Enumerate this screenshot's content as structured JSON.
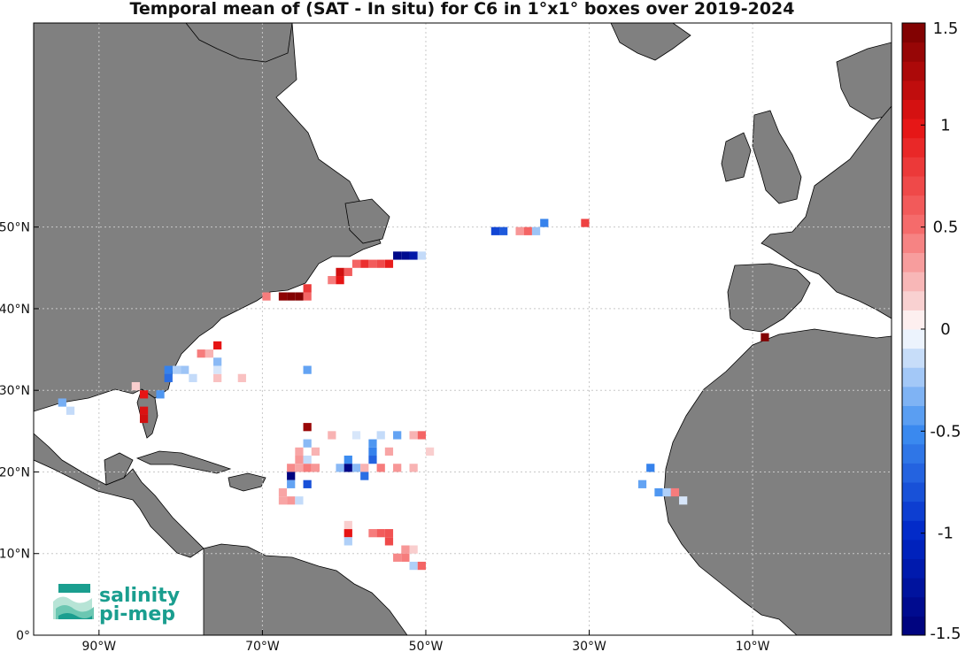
{
  "title": "Temporal mean of (SAT - In situ) for C6 in 1°x1° boxes over 2019-2024",
  "logo": {
    "line1": "salinity",
    "line2": "pi-mep"
  },
  "colors": {
    "land": "#808080",
    "ocean": "#ffffff",
    "grid": "#cccccc"
  },
  "chart_data": {
    "type": "heatmap",
    "map": {
      "lon_range": [
        -98,
        7
      ],
      "lat_range": [
        0,
        75
      ],
      "projection": "equirectangular"
    },
    "x_ticks": [
      {
        "lon": -90,
        "label": "90°W"
      },
      {
        "lon": -70,
        "label": "70°W"
      },
      {
        "lon": -50,
        "label": "50°W"
      },
      {
        "lon": -30,
        "label": "30°W"
      },
      {
        "lon": -10,
        "label": "10°W"
      }
    ],
    "y_ticks": [
      {
        "lat": 0,
        "label": "0°"
      },
      {
        "lat": 10,
        "label": "10°N"
      },
      {
        "lat": 20,
        "label": "20°N"
      },
      {
        "lat": 30,
        "label": "30°N"
      },
      {
        "lat": 40,
        "label": "40°N"
      },
      {
        "lat": 50,
        "label": "50°N"
      }
    ],
    "colorbar": {
      "range": [
        -1.5,
        1.5
      ],
      "levels": 32,
      "ticks": [
        {
          "value": 1.5,
          "label": "1.5"
        },
        {
          "value": 1,
          "label": "1"
        },
        {
          "value": 0.5,
          "label": "0.5"
        },
        {
          "value": 0,
          "label": "0"
        },
        {
          "value": -0.5,
          "label": "-0.5"
        },
        {
          "value": -1,
          "label": "-1"
        },
        {
          "value": -1.5,
          "label": "-1.5"
        }
      ]
    },
    "cells": [
      {
        "lon": -41.5,
        "lat": 49.5,
        "v": -0.85
      },
      {
        "lon": -40.5,
        "lat": 49.5,
        "v": -0.75
      },
      {
        "lon": -38.5,
        "lat": 49.5,
        "v": 0.35
      },
      {
        "lon": -37.5,
        "lat": 49.5,
        "v": 0.55
      },
      {
        "lon": -36.5,
        "lat": 49.5,
        "v": -0.25
      },
      {
        "lon": -35.5,
        "lat": 50.5,
        "v": -0.55
      },
      {
        "lon": -30.5,
        "lat": 50.5,
        "v": 0.75
      },
      {
        "lon": -53.5,
        "lat": 46.5,
        "v": -1.4
      },
      {
        "lon": -52.5,
        "lat": 46.5,
        "v": -1.35
      },
      {
        "lon": -51.5,
        "lat": 46.5,
        "v": -1.2
      },
      {
        "lon": -50.5,
        "lat": 46.5,
        "v": -0.15
      },
      {
        "lon": -54.5,
        "lat": 45.5,
        "v": 0.95
      },
      {
        "lon": -55.5,
        "lat": 45.5,
        "v": 0.7
      },
      {
        "lon": -56.5,
        "lat": 45.5,
        "v": 0.6
      },
      {
        "lon": -57.5,
        "lat": 45.5,
        "v": 0.85
      },
      {
        "lon": -58.5,
        "lat": 45.5,
        "v": 0.55
      },
      {
        "lon": -59.5,
        "lat": 44.5,
        "v": 0.6
      },
      {
        "lon": -60.5,
        "lat": 44.5,
        "v": 1.1
      },
      {
        "lon": -60.5,
        "lat": 43.5,
        "v": 1.0
      },
      {
        "lon": -61.5,
        "lat": 43.5,
        "v": 0.45
      },
      {
        "lon": -64.5,
        "lat": 42.5,
        "v": 0.8
      },
      {
        "lon": -64.5,
        "lat": 41.5,
        "v": 0.55
      },
      {
        "lon": -65.5,
        "lat": 41.5,
        "v": 1.45
      },
      {
        "lon": -66.5,
        "lat": 41.5,
        "v": 1.45
      },
      {
        "lon": -67.5,
        "lat": 41.5,
        "v": 1.4
      },
      {
        "lon": -69.5,
        "lat": 41.5,
        "v": 0.45
      },
      {
        "lon": -75.5,
        "lat": 35.5,
        "v": 1.0
      },
      {
        "lon": -76.5,
        "lat": 34.5,
        "v": 0.25
      },
      {
        "lon": -77.5,
        "lat": 34.5,
        "v": 0.45
      },
      {
        "lon": -75.5,
        "lat": 33.5,
        "v": -0.3
      },
      {
        "lon": -79.5,
        "lat": 32.5,
        "v": -0.25
      },
      {
        "lon": -80.5,
        "lat": 32.5,
        "v": -0.2
      },
      {
        "lon": -81.5,
        "lat": 32.5,
        "v": -0.55
      },
      {
        "lon": -81.5,
        "lat": 31.5,
        "v": -0.65
      },
      {
        "lon": -78.5,
        "lat": 31.5,
        "v": -0.15
      },
      {
        "lon": -72.5,
        "lat": 31.5,
        "v": 0.2
      },
      {
        "lon": -75.5,
        "lat": 31.5,
        "v": 0.2
      },
      {
        "lon": -75.5,
        "lat": 32.5,
        "v": -0.1
      },
      {
        "lon": -64.5,
        "lat": 32.5,
        "v": -0.4
      },
      {
        "lon": -85.5,
        "lat": 30.5,
        "v": 0.15
      },
      {
        "lon": -84.5,
        "lat": 29.5,
        "v": 1.0
      },
      {
        "lon": -82.5,
        "lat": 29.5,
        "v": -0.45
      },
      {
        "lon": -84.5,
        "lat": 27.5,
        "v": 1.05
      },
      {
        "lon": -84.5,
        "lat": 26.5,
        "v": 1.1
      },
      {
        "lon": -94.5,
        "lat": 28.5,
        "v": -0.35
      },
      {
        "lon": -93.5,
        "lat": 27.5,
        "v": -0.15
      },
      {
        "lon": -64.5,
        "lat": 25.5,
        "v": 1.35
      },
      {
        "lon": -61.5,
        "lat": 24.5,
        "v": 0.25
      },
      {
        "lon": -58.5,
        "lat": 24.5,
        "v": -0.1
      },
      {
        "lon": -55.5,
        "lat": 24.5,
        "v": -0.15
      },
      {
        "lon": -53.5,
        "lat": 24.5,
        "v": -0.4
      },
      {
        "lon": -51.5,
        "lat": 24.5,
        "v": 0.25
      },
      {
        "lon": -50.5,
        "lat": 24.5,
        "v": 0.55
      },
      {
        "lon": -56.5,
        "lat": 23.5,
        "v": -0.45
      },
      {
        "lon": -64.5,
        "lat": 23.5,
        "v": -0.3
      },
      {
        "lon": -65.5,
        "lat": 22.5,
        "v": 0.3
      },
      {
        "lon": -63.5,
        "lat": 22.5,
        "v": 0.25
      },
      {
        "lon": -56.5,
        "lat": 22.5,
        "v": -0.55
      },
      {
        "lon": -54.5,
        "lat": 22.5,
        "v": 0.3
      },
      {
        "lon": -49.5,
        "lat": 22.5,
        "v": 0.15
      },
      {
        "lon": -65.5,
        "lat": 21.5,
        "v": 0.35
      },
      {
        "lon": -64.5,
        "lat": 21.5,
        "v": -0.15
      },
      {
        "lon": -59.5,
        "lat": 21.5,
        "v": -0.5
      },
      {
        "lon": -56.5,
        "lat": 21.5,
        "v": -0.7
      },
      {
        "lon": -66.5,
        "lat": 20.5,
        "v": 0.4
      },
      {
        "lon": -65.5,
        "lat": 20.5,
        "v": 0.3
      },
      {
        "lon": -64.5,
        "lat": 20.5,
        "v": 0.45
      },
      {
        "lon": -63.5,
        "lat": 20.5,
        "v": 0.35
      },
      {
        "lon": -66.5,
        "lat": 19.5,
        "v": -1.45
      },
      {
        "lon": -60.5,
        "lat": 20.5,
        "v": -0.3
      },
      {
        "lon": -59.5,
        "lat": 20.5,
        "v": -1.4
      },
      {
        "lon": -58.5,
        "lat": 20.5,
        "v": -0.3
      },
      {
        "lon": -57.5,
        "lat": 20.5,
        "v": 0.25
      },
      {
        "lon": -55.5,
        "lat": 20.5,
        "v": 0.45
      },
      {
        "lon": -53.5,
        "lat": 20.5,
        "v": 0.35
      },
      {
        "lon": -51.5,
        "lat": 20.5,
        "v": 0.25
      },
      {
        "lon": -57.5,
        "lat": 19.5,
        "v": -0.65
      },
      {
        "lon": -66.5,
        "lat": 18.5,
        "v": -0.4
      },
      {
        "lon": -64.5,
        "lat": 18.5,
        "v": -0.8
      },
      {
        "lon": -67.5,
        "lat": 17.5,
        "v": 0.3
      },
      {
        "lon": -66.5,
        "lat": 16.5,
        "v": 0.35
      },
      {
        "lon": -65.5,
        "lat": 16.5,
        "v": -0.15
      },
      {
        "lon": -67.5,
        "lat": 16.5,
        "v": 0.3
      },
      {
        "lon": -59.5,
        "lat": 12.5,
        "v": 1.0
      },
      {
        "lon": -59.5,
        "lat": 11.5,
        "v": -0.2
      },
      {
        "lon": -59.5,
        "lat": 13.5,
        "v": 0.15
      },
      {
        "lon": -56.5,
        "lat": 12.5,
        "v": 0.45
      },
      {
        "lon": -55.5,
        "lat": 12.5,
        "v": 0.6
      },
      {
        "lon": -54.5,
        "lat": 12.5,
        "v": 0.65
      },
      {
        "lon": -54.5,
        "lat": 11.5,
        "v": 0.7
      },
      {
        "lon": -52.5,
        "lat": 10.5,
        "v": 0.35
      },
      {
        "lon": -51.5,
        "lat": 10.5,
        "v": 0.15
      },
      {
        "lon": -53.5,
        "lat": 9.5,
        "v": 0.4
      },
      {
        "lon": -52.5,
        "lat": 9.5,
        "v": 0.45
      },
      {
        "lon": -51.5,
        "lat": 8.5,
        "v": -0.2
      },
      {
        "lon": -50.5,
        "lat": 8.5,
        "v": 0.55
      },
      {
        "lon": -22.5,
        "lat": 20.5,
        "v": -0.55
      },
      {
        "lon": -23.5,
        "lat": 18.5,
        "v": -0.4
      },
      {
        "lon": -21.5,
        "lat": 17.5,
        "v": -0.45
      },
      {
        "lon": -20.5,
        "lat": 17.5,
        "v": -0.2
      },
      {
        "lon": -19.5,
        "lat": 17.5,
        "v": 0.45
      },
      {
        "lon": -18.5,
        "lat": 16.5,
        "v": -0.1
      },
      {
        "lon": -8.5,
        "lat": 36.5,
        "v": 1.45
      }
    ]
  }
}
